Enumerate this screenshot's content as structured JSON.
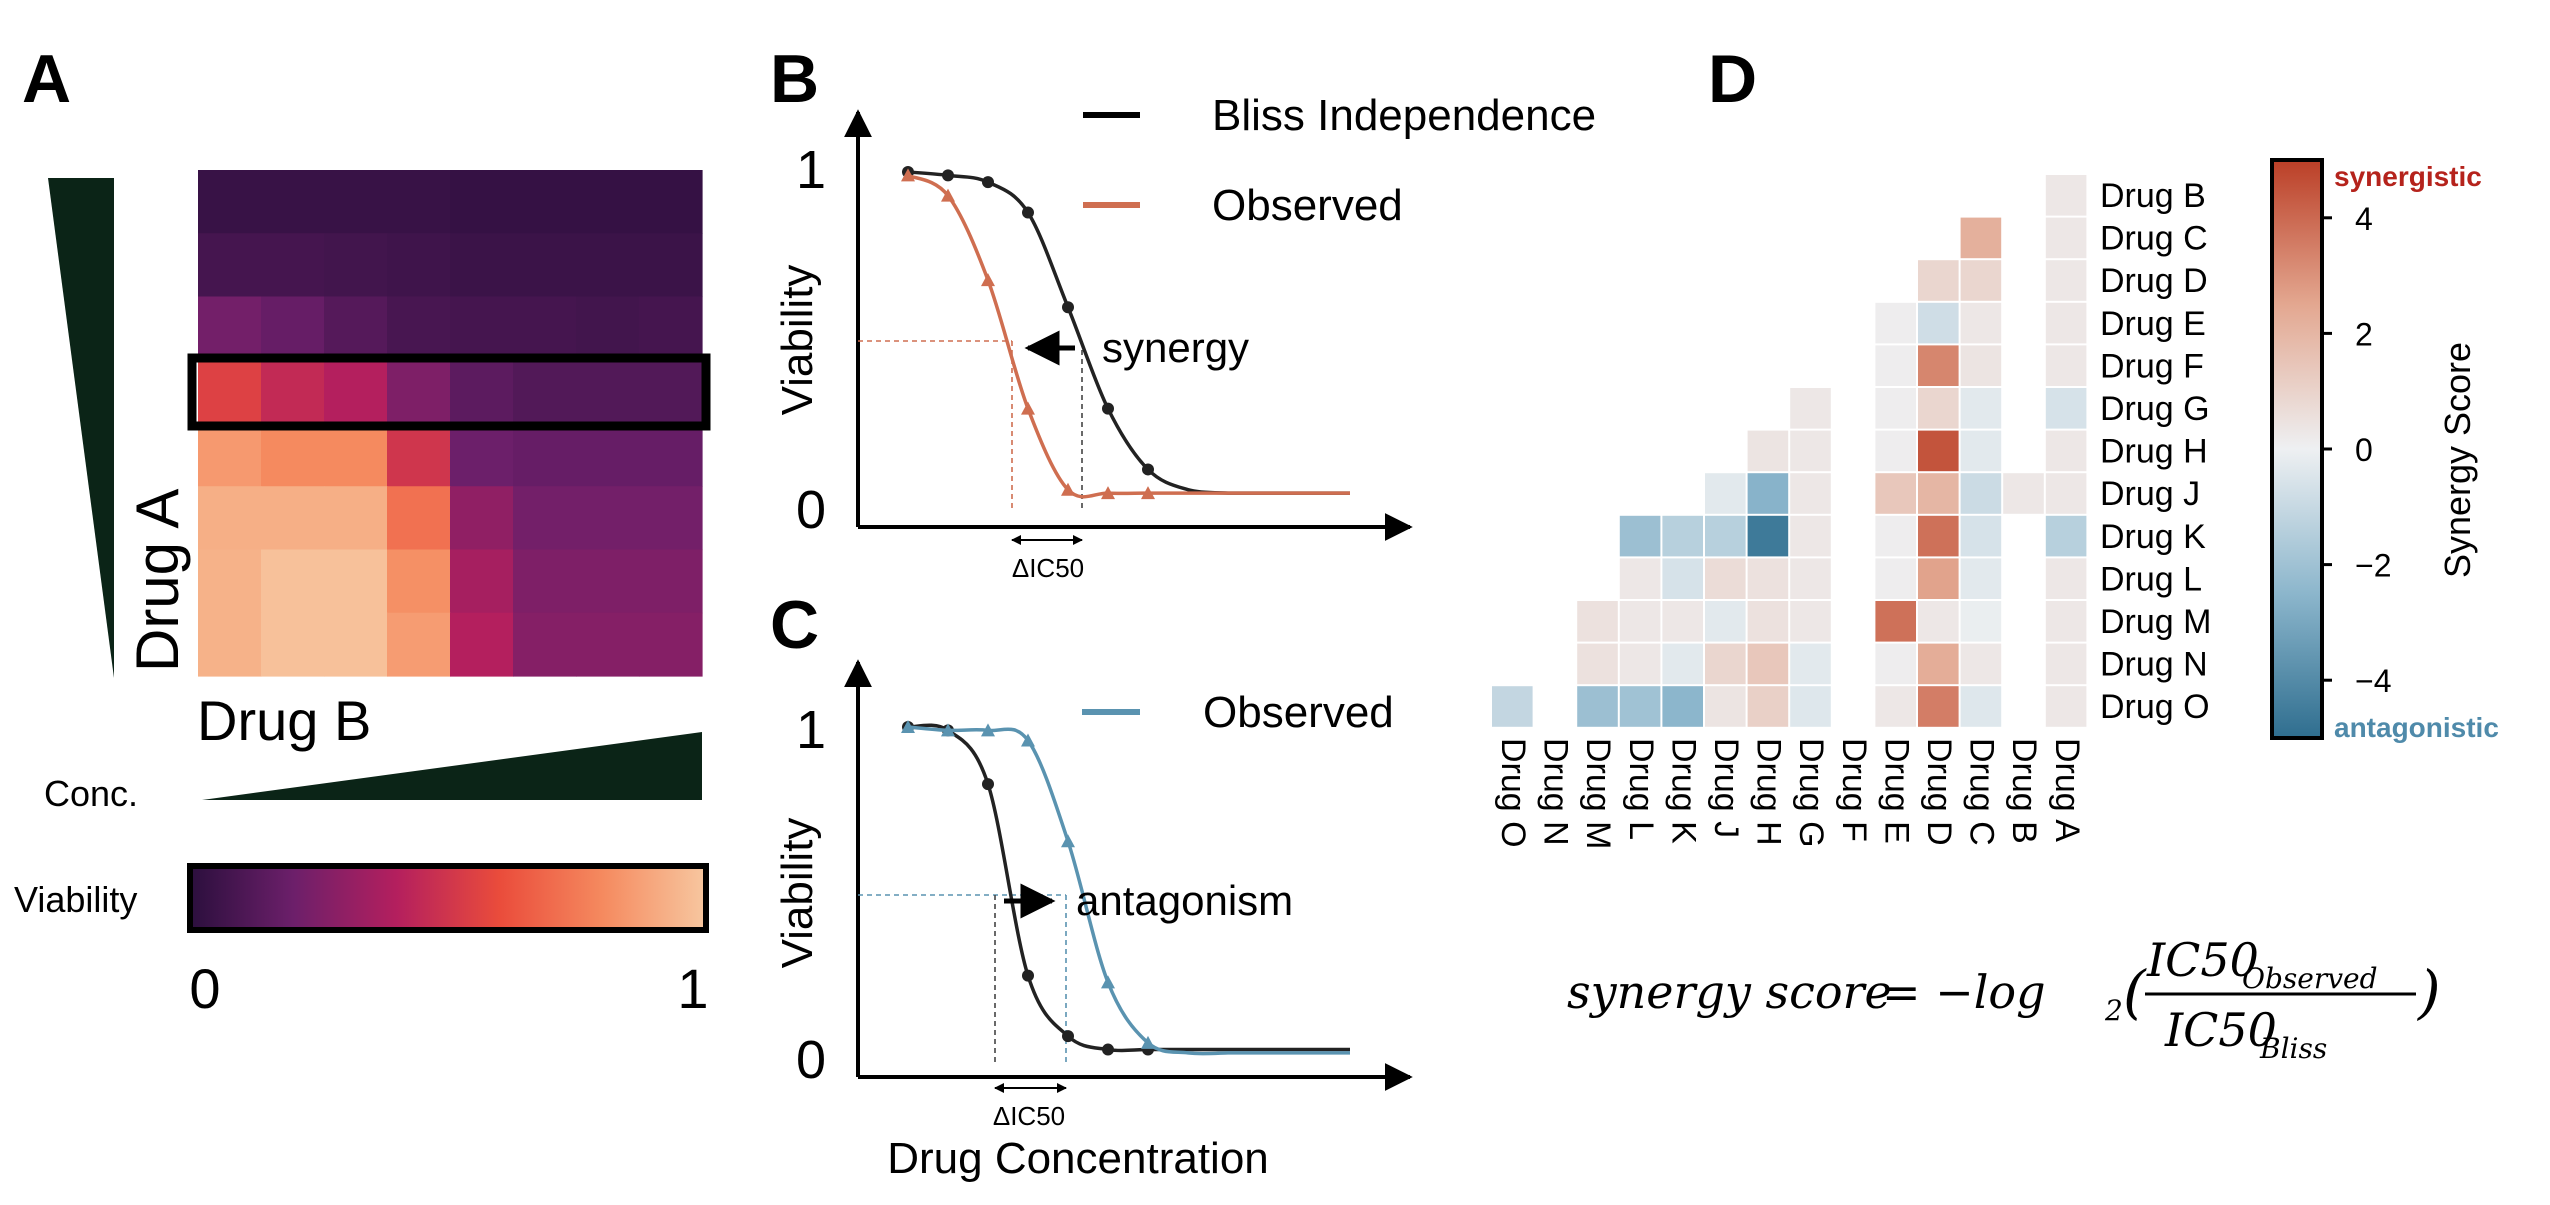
{
  "panel_labels": {
    "a": "A",
    "b": "B",
    "c": "C",
    "d": "D"
  },
  "colors": {
    "bliss": "#222222",
    "synergy_observed": "#cf6e50",
    "antagonism_observed": "#5a93b0",
    "dark_green": "#0b2417",
    "synergistic_label": "#b5231c",
    "antagonistic_label": "#4f8aaa",
    "viability_gradient": [
      "#2b0f3d",
      "#6c1f6a",
      "#b41f5e",
      "#ea4c3b",
      "#f58a5f",
      "#f7c7a0"
    ],
    "synergy_gradient": [
      "#2f6e8f",
      "#8cb6cc",
      "#eef0f2",
      "#e3a790",
      "#bb3f27"
    ]
  },
  "panel_a": {
    "drug_a_label": "Drug A",
    "drug_b_label": "Drug B",
    "conc_label": "Conc.",
    "viability_label": "Viability",
    "scale_min": "0",
    "scale_max": "1",
    "grid": [
      [
        0.04,
        0.04,
        0.04,
        0.04,
        0.03,
        0.03,
        0.03,
        0.03
      ],
      [
        0.08,
        0.08,
        0.07,
        0.06,
        0.05,
        0.05,
        0.05,
        0.05
      ],
      [
        0.22,
        0.18,
        0.13,
        0.09,
        0.08,
        0.08,
        0.07,
        0.08
      ],
      [
        0.55,
        0.45,
        0.4,
        0.25,
        0.15,
        0.12,
        0.12,
        0.12
      ],
      [
        0.85,
        0.8,
        0.8,
        0.5,
        0.2,
        0.18,
        0.18,
        0.18
      ],
      [
        0.92,
        0.92,
        0.92,
        0.72,
        0.3,
        0.22,
        0.22,
        0.22
      ],
      [
        0.93,
        0.98,
        0.98,
        0.82,
        0.36,
        0.25,
        0.25,
        0.25
      ],
      [
        0.93,
        0.98,
        0.98,
        0.86,
        0.4,
        0.27,
        0.27,
        0.27
      ]
    ],
    "highlighted_row": 3
  },
  "panel_b": {
    "ylabel": "Viability",
    "y_tick_top": "1",
    "y_tick_bottom": "0",
    "legend": [
      {
        "label": "Bliss Independence",
        "color": "#222222"
      },
      {
        "label": "Observed",
        "color": "#cf6e50"
      }
    ],
    "annotation": "synergy",
    "delta_label": "ΔIC50"
  },
  "panel_c": {
    "ylabel": "Viability",
    "xlabel": "Drug Concentration",
    "y_tick_top": "1",
    "y_tick_bottom": "0",
    "legend": [
      {
        "label": "Observed",
        "color": "#5a93b0"
      }
    ],
    "annotation": "antagonism",
    "delta_label": "ΔIC50"
  },
  "chart_data": [
    {
      "type": "heatmap",
      "x": [
        "Drug B (increasing conc.)",
        "",
        "",
        "",
        "",
        "",
        "",
        ""
      ],
      "y": [
        "Drug A (decreasing conc.)",
        "",
        "",
        "",
        "",
        "",
        "",
        ""
      ],
      "values_ref": "panel_a.grid",
      "colorbar_label": "Viability",
      "range": [
        0,
        1
      ]
    },
    {
      "type": "line",
      "ylabel": "Viability",
      "ylim": [
        0,
        1
      ],
      "series": [
        {
          "name": "Bliss Independence",
          "x": [
            1,
            2,
            3,
            4,
            5,
            6,
            7,
            8,
            9
          ],
          "y": [
            1.0,
            0.99,
            0.97,
            0.88,
            0.6,
            0.3,
            0.12,
            0.06,
            0.05
          ]
        },
        {
          "name": "Observed",
          "x": [
            1,
            2,
            3,
            4,
            5,
            6,
            7,
            8,
            9
          ],
          "y": [
            0.99,
            0.93,
            0.68,
            0.3,
            0.06,
            0.05,
            0.05,
            0.05,
            0.05
          ]
        }
      ],
      "annotation": "synergy"
    },
    {
      "type": "line",
      "ylabel": "Viability",
      "xlabel": "Drug Concentration",
      "ylim": [
        0,
        1
      ],
      "series": [
        {
          "name": "Bliss Independence",
          "x": [
            1,
            2,
            3,
            4,
            5,
            6,
            7,
            8,
            9
          ],
          "y": [
            1.0,
            0.99,
            0.83,
            0.26,
            0.08,
            0.04,
            0.04,
            0.04,
            0.04
          ]
        },
        {
          "name": "Observed",
          "x": [
            1,
            2,
            3,
            4,
            5,
            6,
            7,
            8,
            9
          ],
          "y": [
            1.0,
            0.99,
            0.99,
            0.96,
            0.66,
            0.24,
            0.06,
            0.03,
            0.03
          ]
        }
      ],
      "annotation": "antagonism"
    },
    {
      "type": "heatmap",
      "colorbar_label": "Synergy Score",
      "colorbar_ticks": [
        "4",
        "2",
        "0",
        "−2",
        "−4"
      ],
      "colorbar_range": [
        -5,
        5
      ],
      "top_label": "synergistic",
      "bottom_label": "antagonistic",
      "rows": [
        "Drug B",
        "Drug C",
        "Drug D",
        "Drug E",
        "Drug F",
        "Drug G",
        "Drug H",
        "Drug J",
        "Drug K",
        "Drug L",
        "Drug M",
        "Drug N",
        "Drug O"
      ],
      "cols": [
        "Drug O",
        "Drug N",
        "Drug M",
        "Drug L",
        "Drug K",
        "Drug J",
        "Drug H",
        "Drug G",
        "Drug F",
        "Drug E",
        "Drug D",
        "Drug C",
        "Drug B",
        "Drug A"
      ],
      "values": [
        [
          null,
          null,
          null,
          null,
          null,
          null,
          null,
          null,
          null,
          null,
          null,
          null,
          null,
          0.3
        ],
        [
          null,
          null,
          null,
          null,
          null,
          null,
          null,
          null,
          null,
          null,
          null,
          2.2,
          null,
          0.3
        ],
        [
          null,
          null,
          null,
          null,
          null,
          null,
          null,
          null,
          null,
          null,
          0.9,
          0.9,
          null,
          0.3
        ],
        [
          null,
          null,
          null,
          null,
          null,
          null,
          null,
          null,
          null,
          0.1,
          -0.8,
          0.3,
          null,
          0.3
        ],
        [
          null,
          null,
          null,
          null,
          null,
          null,
          null,
          null,
          null,
          0.1,
          3.3,
          0.4,
          null,
          0.3
        ],
        [
          null,
          null,
          null,
          null,
          null,
          null,
          null,
          0.3,
          null,
          0.1,
          0.9,
          -0.3,
          null,
          -0.6
        ],
        [
          null,
          null,
          null,
          null,
          null,
          null,
          0.4,
          0.3,
          null,
          0.1,
          4.5,
          -0.3,
          null,
          0.3
        ],
        [
          null,
          null,
          null,
          null,
          null,
          -0.3,
          -2.6,
          0.3,
          null,
          1.4,
          2.0,
          -0.9,
          0.3,
          0.3
        ],
        [
          null,
          null,
          null,
          -2.1,
          -1.4,
          -1.4,
          -4.6,
          0.3,
          null,
          0.1,
          3.8,
          -0.6,
          null,
          -1.4
        ],
        [
          null,
          null,
          null,
          0.3,
          -0.6,
          0.7,
          0.5,
          0.3,
          null,
          0.1,
          2.6,
          -0.3,
          null,
          0.3
        ],
        [
          null,
          null,
          0.5,
          0.3,
          0.3,
          -0.3,
          0.5,
          0.3,
          null,
          3.8,
          0.3,
          -0.1,
          null,
          0.3
        ],
        [
          null,
          null,
          0.5,
          0.3,
          -0.3,
          0.9,
          1.4,
          -0.3,
          null,
          0.1,
          2.3,
          0.3,
          null,
          0.3
        ],
        [
          -1.1,
          null,
          -2.1,
          -2.0,
          -2.5,
          0.4,
          1.1,
          -0.4,
          null,
          0.3,
          3.5,
          -0.4,
          null,
          0.3
        ]
      ]
    }
  ],
  "formula": {
    "lhs": "synergy score",
    "equals": "= −log",
    "sub": "2",
    "numerator": "IC50",
    "numerator_sub": "Observed",
    "denominator": "IC50",
    "denominator_sub": "Bliss"
  }
}
